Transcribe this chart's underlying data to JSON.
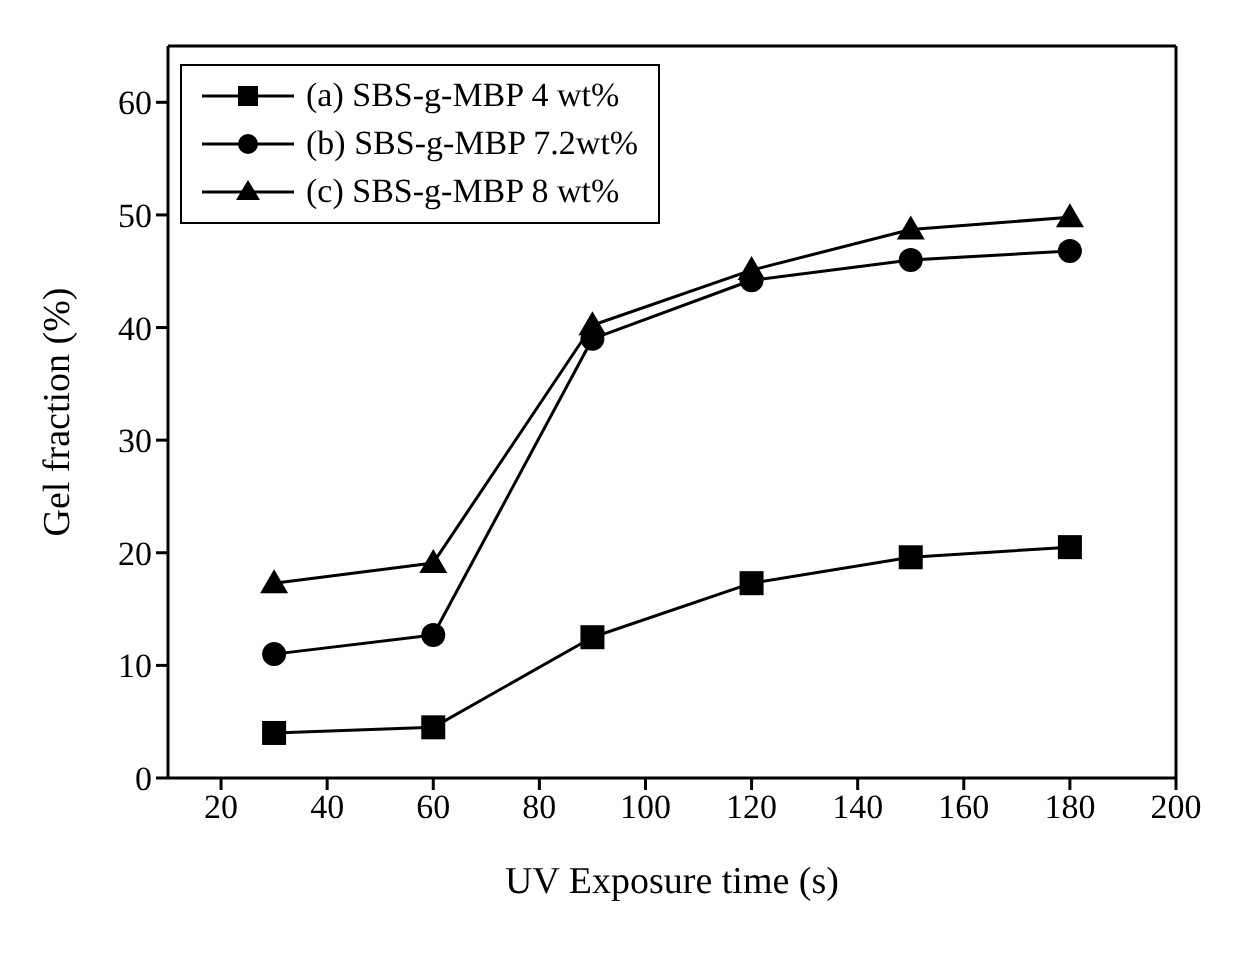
{
  "chart_data": {
    "type": "line",
    "xlabel": "UV Exposure time (s)",
    "ylabel": "Gel fraction (%)",
    "x": [
      30,
      60,
      90,
      120,
      150,
      180
    ],
    "xlim": [
      10,
      200
    ],
    "xticks": [
      20,
      40,
      60,
      80,
      100,
      120,
      140,
      160,
      180,
      200
    ],
    "ylim": [
      0,
      65
    ],
    "yticks": [
      0,
      10,
      20,
      30,
      40,
      50,
      60
    ],
    "grid": false,
    "legend": "top left",
    "line_style": "solid",
    "series": [
      {
        "name": "(a) SBS-g-MBP 4 wt%",
        "color": "#000000",
        "marker": "square",
        "values": [
          4,
          4.5,
          12.5,
          17.3,
          19.6,
          20.5
        ]
      },
      {
        "name": "(b) SBS-g-MBP 7.2wt%",
        "color": "#000000",
        "marker": "circle",
        "values": [
          11,
          12.7,
          39,
          44.2,
          46,
          46.8
        ]
      },
      {
        "name": "(c) SBS-g-MBP 8 wt%",
        "color": "#000000",
        "marker": "triangle",
        "values": [
          17.3,
          19.1,
          40.2,
          45.1,
          48.7,
          49.8
        ]
      }
    ]
  }
}
